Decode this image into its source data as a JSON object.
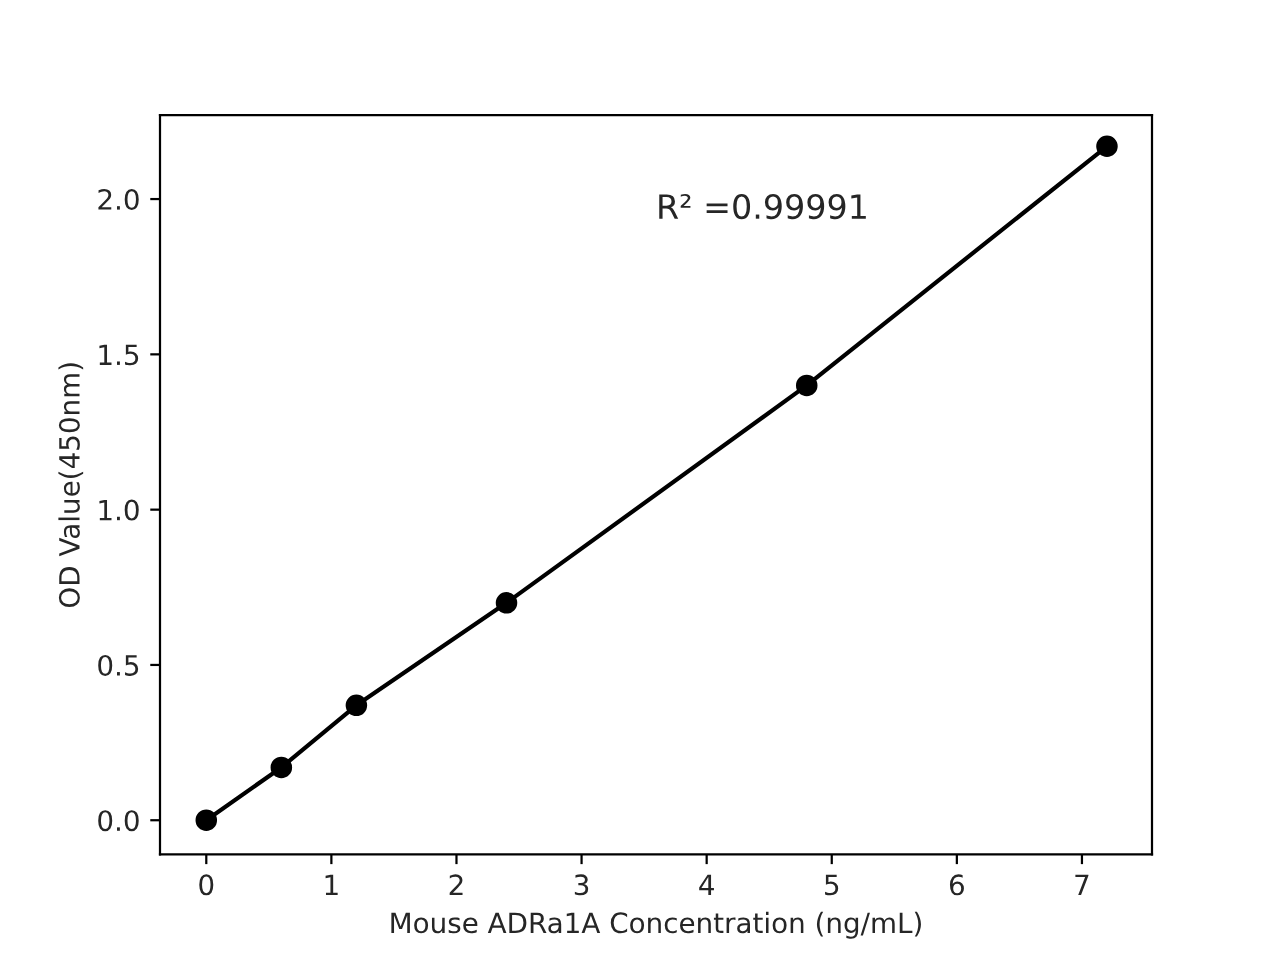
{
  "chart_data": {
    "type": "line",
    "xlabel": "Mouse ADRa1A Concentration (ng/mL)",
    "ylabel": "OD Value(450nm)",
    "x": [
      0,
      0.6,
      1.2,
      2.4,
      4.8,
      7.2
    ],
    "series": [
      {
        "color": "#000000",
        "values": [
          0.0,
          0.17,
          0.37,
          0.7,
          1.4,
          2.17
        ]
      }
    ],
    "marker": "circle",
    "line_style": "solid",
    "xlim": [
      -0.37,
      7.56
    ],
    "ylim": [
      -0.11,
      2.27
    ],
    "xticks": [
      0,
      1,
      2,
      3,
      4,
      5,
      6,
      7
    ],
    "yticks": [
      {
        "value": 0,
        "label": "0.0"
      },
      {
        "value": 0.5,
        "label": "0.5"
      },
      {
        "value": 1.0,
        "label": "1.0"
      },
      {
        "value": 1.5,
        "label": "1.5"
      },
      {
        "value": 2.0,
        "label": "2.0"
      }
    ],
    "annotations": [
      "R² =0.99991"
    ]
  }
}
